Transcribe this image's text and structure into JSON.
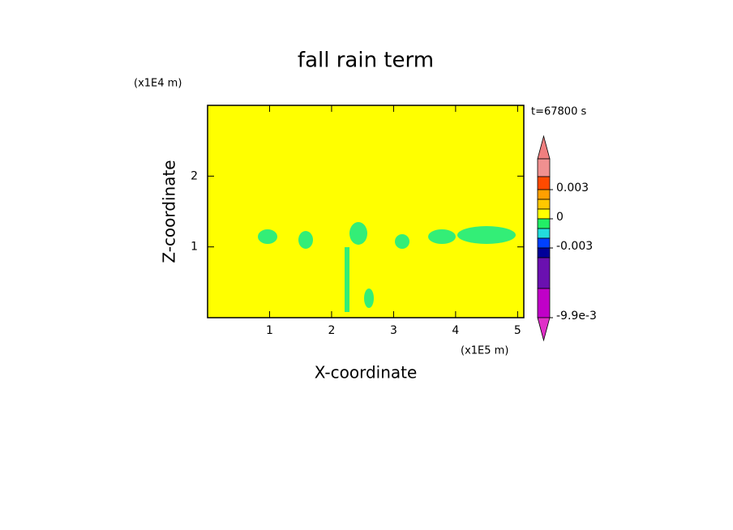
{
  "chart_data": {
    "type": "contour",
    "title": "fall rain term",
    "x_label": "X-coordinate",
    "y_label": "Z-coordinate",
    "x_unit": "(x1E5 m)",
    "y_unit": "(x1E4 m)",
    "time_label": "t=67800 s",
    "background_color": "#ffff00",
    "xlim": [
      0,
      5.1
    ],
    "xticks": [
      1,
      2,
      3,
      4,
      5
    ],
    "ylim": [
      0,
      3
    ],
    "yticks": [
      1,
      2
    ],
    "colorbar": {
      "colors": [
        "#f07f7f",
        "#f09090",
        "#ff4a00",
        "#ffa000",
        "#ffc800",
        "#ffff00",
        "#22ee66",
        "#22dddd",
        "#0040ff",
        "#000099",
        "#6a10b0",
        "#c000c8",
        "#e030c8"
      ],
      "ticks": [
        {
          "value": 0.003,
          "label": "0.003"
        },
        0,
        {
          "value": -0.003,
          "label": "-0.003"
        },
        {
          "value": -0.0099,
          "label": "-9.9e-3"
        }
      ]
    }
  }
}
